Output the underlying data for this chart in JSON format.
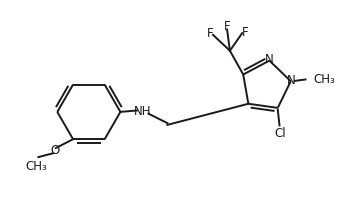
{
  "bg_color": "#ffffff",
  "line_color": "#1a1a1a",
  "line_width": 1.4,
  "font_size": 8.5,
  "figsize": [
    3.53,
    2.03
  ],
  "dpi": 100,
  "xlim": [
    0,
    10
  ],
  "ylim": [
    0,
    5.75
  ]
}
